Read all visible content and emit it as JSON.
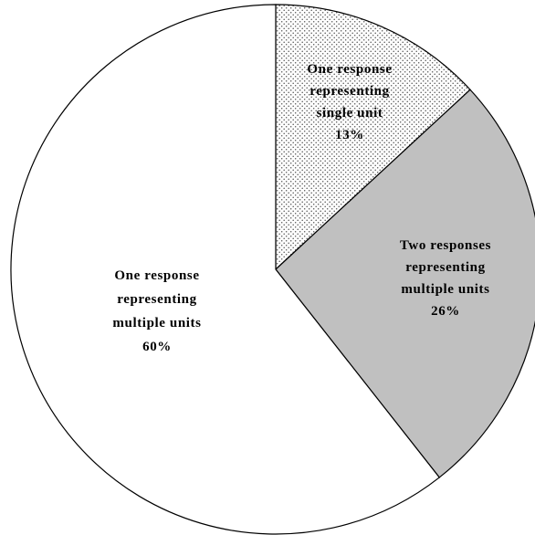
{
  "chart_data": {
    "type": "pie",
    "title": "",
    "slices": [
      {
        "label_lines": [
          "One response",
          "representing",
          "single unit",
          "13%"
        ],
        "value": 13,
        "fill": "dots"
      },
      {
        "label_lines": [
          "Two responses",
          "representing",
          "multiple units",
          "26%"
        ],
        "value": 26,
        "fill": "#c0c0c0"
      },
      {
        "label_lines": [
          "One response",
          "representing",
          "multiple units",
          "60%"
        ],
        "value": 60,
        "fill": "#ffffff"
      }
    ],
    "start_angle_deg": 0,
    "direction": "clockwise",
    "legend": "none"
  }
}
